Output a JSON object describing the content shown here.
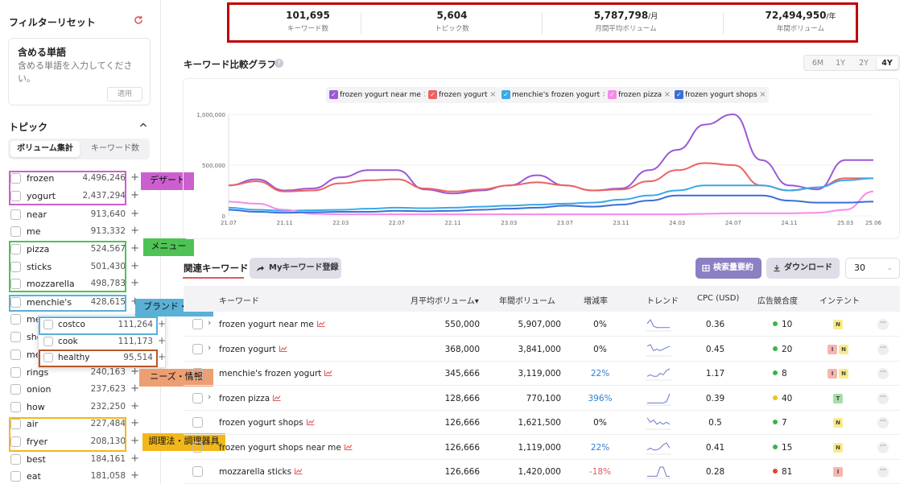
{
  "sidebar": {
    "filter_reset": "フィルターリセット",
    "include_words": {
      "title": "含める単語",
      "placeholder": "含める単語を入力してください。",
      "apply": "適用"
    },
    "topic_title": "トピック",
    "segments": [
      "ボリューム集計",
      "キーワード数"
    ],
    "topics": [
      {
        "name": "frozen",
        "value": "4,496,246"
      },
      {
        "name": "yogurt",
        "value": "2,437,294"
      },
      {
        "name": "near",
        "value": "913,640"
      },
      {
        "name": "me",
        "value": "913,332"
      },
      {
        "name": "pizza",
        "value": "524,567"
      },
      {
        "name": "sticks",
        "value": "501,430"
      },
      {
        "name": "mozzarella",
        "value": "498,783"
      },
      {
        "name": "menchie's",
        "value": "428,615"
      },
      {
        "name": "me",
        "value": ""
      },
      {
        "name": "sho",
        "value": ""
      },
      {
        "name": "me",
        "value": ""
      },
      {
        "name": "rings",
        "value": "240,163"
      },
      {
        "name": "onion",
        "value": "237,623"
      },
      {
        "name": "how",
        "value": "232,250"
      },
      {
        "name": "air",
        "value": "227,484"
      },
      {
        "name": "fryer",
        "value": "208,130"
      },
      {
        "name": "best",
        "value": "184,161"
      },
      {
        "name": "eat",
        "value": "181,058"
      }
    ],
    "popup_topics": [
      {
        "name": "costco",
        "value": "111,264"
      },
      {
        "name": "cook",
        "value": "111,173"
      },
      {
        "name": "healthy",
        "value": "95,514"
      }
    ]
  },
  "annotations": {
    "dessert": {
      "label": "デザート",
      "color": "#cc5fd0"
    },
    "menu": {
      "label": "メニュー",
      "color": "#4fc256"
    },
    "brand": {
      "label": "ブランド・流通",
      "color": "#5ab0d6"
    },
    "needs": {
      "label": "ニーズ・情報",
      "color": "#ec9f73"
    },
    "cooking": {
      "label": "調理法・調理器具",
      "color": "#f2b71b"
    }
  },
  "summary": [
    {
      "value": "101,695",
      "unit": "",
      "label": "キーワード数"
    },
    {
      "value": "5,604",
      "unit": "",
      "label": "トピック数"
    },
    {
      "value": "5,787,798",
      "unit": "/月",
      "label": "月間平均ボリューム"
    },
    {
      "value": "72,494,950",
      "unit": "/年",
      "label": "年間ボリューム"
    }
  ],
  "chart_section": {
    "title": "キーワード比較グラフ",
    "info": "?",
    "ranges": [
      "6M",
      "1Y",
      "2Y",
      "4Y"
    ],
    "active_range": "4Y"
  },
  "chart_data": {
    "type": "line",
    "x": [
      "21.07",
      "21.09",
      "21.11",
      "22.01",
      "22.03",
      "22.05",
      "22.07",
      "22.09",
      "22.11",
      "23.01",
      "23.03",
      "23.05",
      "23.07",
      "23.09",
      "23.11",
      "24.01",
      "24.03",
      "24.05",
      "24.07",
      "24.09",
      "24.11",
      "25.01",
      "25.03",
      "25.06"
    ],
    "x_ticks": [
      "21.07",
      "21.11",
      "22.03",
      "22.07",
      "22.11",
      "23.03",
      "23.07",
      "23.11",
      "24.03",
      "24.07",
      "24.11",
      "25.03",
      "25.06"
    ],
    "y_ticks": [
      "0",
      "500,000",
      "1,000,000"
    ],
    "ylim": [
      0,
      1000000
    ],
    "series": [
      {
        "name": "frozen yogurt near me",
        "color": "#9b59d6",
        "values": [
          300000,
          360000,
          250000,
          270000,
          380000,
          450000,
          450000,
          260000,
          220000,
          250000,
          300000,
          400000,
          300000,
          250000,
          270000,
          450000,
          650000,
          900000,
          1000000,
          550000,
          300000,
          260000,
          550000,
          550000
        ]
      },
      {
        "name": "frozen yogurt",
        "color": "#ec6363",
        "values": [
          300000,
          340000,
          240000,
          250000,
          320000,
          350000,
          360000,
          270000,
          240000,
          260000,
          300000,
          330000,
          300000,
          250000,
          260000,
          340000,
          450000,
          520000,
          500000,
          300000,
          250000,
          280000,
          370000,
          370000
        ]
      },
      {
        "name": "menchie's frozen yogurt",
        "color": "#3aa9e8",
        "values": [
          80000,
          60000,
          50000,
          55000,
          60000,
          70000,
          80000,
          75000,
          80000,
          90000,
          100000,
          110000,
          120000,
          130000,
          160000,
          200000,
          250000,
          300000,
          300000,
          300000,
          250000,
          280000,
          350000,
          370000
        ]
      },
      {
        "name": "frozen pizza",
        "color": "#f58be8",
        "values": [
          140000,
          120000,
          60000,
          20000,
          15000,
          15000,
          15000,
          15000,
          15000,
          15000,
          15000,
          15000,
          15000,
          15000,
          15000,
          15000,
          15000,
          20000,
          25000,
          25000,
          25000,
          30000,
          60000,
          240000
        ]
      },
      {
        "name": "frozen yogurt shops",
        "color": "#3a6fd9",
        "values": [
          60000,
          40000,
          30000,
          35000,
          40000,
          40000,
          50000,
          45000,
          50000,
          60000,
          70000,
          80000,
          100000,
          90000,
          110000,
          150000,
          200000,
          200000,
          200000,
          200000,
          150000,
          130000,
          130000,
          140000
        ]
      }
    ]
  },
  "table_section": {
    "tab_label": "関連キーワード",
    "my_keyword_button": "Myキーワード登録",
    "volume_summary_button": "検索量要約",
    "download_button": "ダウンロード",
    "page_size": "30",
    "columns": [
      "キーワード",
      "月平均ボリューム▾",
      "年間ボリューム",
      "増減率",
      "トレンド",
      "CPC (USD)",
      "広告競合度",
      "インテント"
    ],
    "rows": [
      {
        "keyword": "frozen yogurt near me",
        "monthly": "550,000",
        "yearly": "5,907,000",
        "growth": "0%",
        "cpc": "0.36",
        "competition": "10",
        "intents": [
          "N"
        ],
        "expand": true,
        "growth_color": "#222",
        "dot": "#3bb34a",
        "spark": [
          5,
          8,
          3,
          2,
          2,
          2,
          2,
          2
        ]
      },
      {
        "keyword": "frozen yogurt",
        "monthly": "368,000",
        "yearly": "3,841,000",
        "growth": "0%",
        "cpc": "0.45",
        "competition": "20",
        "intents": [
          "I",
          "N"
        ],
        "expand": true,
        "growth_color": "#222",
        "dot": "#3bb34a",
        "spark": [
          6,
          7,
          3,
          4,
          3,
          4,
          5,
          6
        ]
      },
      {
        "keyword": "menchie's frozen yogurt",
        "monthly": "345,666",
        "yearly": "3,119,000",
        "growth": "22%",
        "cpc": "1.17",
        "competition": "8",
        "intents": [
          "I",
          "N"
        ],
        "expand": false,
        "growth_color": "#2f7fd6",
        "dot": "#3bb34a",
        "spark": [
          2,
          3,
          2,
          2,
          4,
          3,
          6,
          7
        ]
      },
      {
        "keyword": "frozen pizza",
        "monthly": "128,666",
        "yearly": "770,100",
        "growth": "396%",
        "cpc": "0.39",
        "competition": "40",
        "intents": [
          "T"
        ],
        "expand": true,
        "growth_color": "#2f7fd6",
        "dot": "#e6c81a",
        "spark": [
          1,
          1,
          1,
          1,
          1,
          1,
          2,
          8
        ]
      },
      {
        "keyword": "frozen yogurt shops",
        "monthly": "126,666",
        "yearly": "1,621,500",
        "growth": "0%",
        "cpc": "0.5",
        "competition": "7",
        "intents": [
          "N"
        ],
        "expand": false,
        "growth_color": "#222",
        "dot": "#3bb34a",
        "spark": [
          5,
          3,
          4,
          2,
          3,
          2,
          3,
          2
        ]
      },
      {
        "keyword": "frozen yogurt shops near me",
        "monthly": "126,666",
        "yearly": "1,119,000",
        "growth": "22%",
        "cpc": "0.41",
        "competition": "15",
        "intents": [
          "N"
        ],
        "expand": false,
        "growth_color": "#2f7fd6",
        "dot": "#3bb34a",
        "spark": [
          2,
          3,
          2,
          2,
          3,
          5,
          6,
          3
        ]
      },
      {
        "keyword": "mozzarella sticks",
        "monthly": "126,666",
        "yearly": "1,420,000",
        "growth": "-18%",
        "cpc": "0.28",
        "competition": "81",
        "intents": [
          "I"
        ],
        "expand": false,
        "growth_color": "#e15a5a",
        "dot": "#e5452c",
        "spark": [
          1,
          1,
          1,
          1,
          8,
          8,
          1,
          1
        ]
      }
    ]
  }
}
